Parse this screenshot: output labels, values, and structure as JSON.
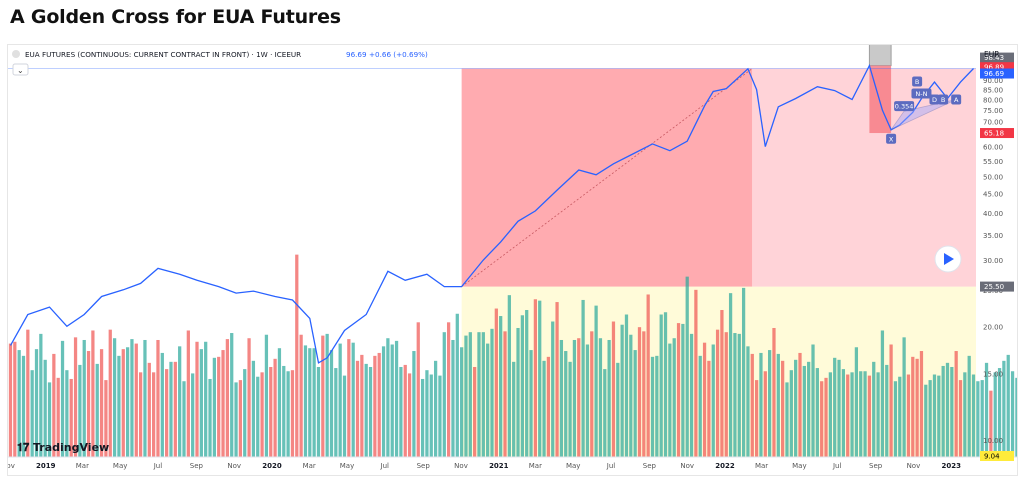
{
  "page": {
    "title": "A Golden Cross for EUA Futures"
  },
  "header": {
    "symbol_title": "EUA FUTURES (CONTINUOUS: CURRENT CONTRACT IN FRONT) · 1W · ICEEUR",
    "last": "96.69",
    "change": "+0.66 (+0.69%)",
    "currency": "EUR",
    "logo_text": "TradingView"
  },
  "colors": {
    "price_line": "#2962ff",
    "vol_up": "#26a69a",
    "vol_down": "#ef5350",
    "zone_red": "#ffabb0",
    "zone_pink": "#ffd3d8",
    "zone_yellow": "#fffbd9",
    "badge_last": "#2962ff",
    "badge_red": "#f23645",
    "badge_grey": "#6a6d78",
    "badge_vol": "#ffeb3b"
  },
  "price_badges": [
    {
      "label": "98.43",
      "kind": "grey"
    },
    {
      "label": "96.89",
      "kind": "red"
    },
    {
      "label": "96.69",
      "kind": "last"
    },
    {
      "label": "65.18",
      "kind": "red"
    },
    {
      "label": "25.50",
      "kind": "grey"
    },
    {
      "label": "9.04",
      "kind": "vol"
    }
  ],
  "pattern_labels": [
    "B",
    "N-N",
    "D",
    "B",
    "A",
    "X",
    "0.354"
  ],
  "chart_data": {
    "type": "line",
    "title": "EUA FUTURES (CONTINUOUS: CURRENT CONTRACT IN FRONT) · 1W · ICEEUR",
    "xlabel": "",
    "ylabel": "EUR",
    "ylim": [
      9,
      100
    ],
    "y_scale": "log",
    "y_ticks": [
      95,
      90,
      85,
      80,
      75,
      70,
      65,
      60,
      55,
      50,
      45,
      40,
      35,
      30,
      25,
      20,
      15,
      10
    ],
    "x_tick_labels": [
      "Nov",
      "2019",
      "Mar",
      "May",
      "Jul",
      "Sep",
      "Nov",
      "2020",
      "Mar",
      "May",
      "Jul",
      "Sep",
      "Nov",
      "2021",
      "Mar",
      "May",
      "Jul",
      "Sep",
      "Nov",
      "2022",
      "Mar",
      "May",
      "Jul",
      "Sep",
      "Nov",
      "2023"
    ],
    "x_range": [
      "2018-11-01",
      "2023-02-10"
    ],
    "series": [
      {
        "type": "line",
        "points": [
          [
            "2018-11-05",
            17.8
          ],
          [
            "2018-12-03",
            21.5
          ],
          [
            "2019-01-07",
            22.5
          ],
          [
            "2019-02-04",
            20.0
          ],
          [
            "2019-03-04",
            21.5
          ],
          [
            "2019-04-01",
            24.0
          ],
          [
            "2019-05-06",
            25.0
          ],
          [
            "2019-06-03",
            26.0
          ],
          [
            "2019-07-01",
            28.5
          ],
          [
            "2019-08-05",
            27.5
          ],
          [
            "2019-09-02",
            26.5
          ],
          [
            "2019-10-07",
            25.5
          ],
          [
            "2019-11-04",
            24.5
          ],
          [
            "2019-12-02",
            24.8
          ],
          [
            "2020-01-06",
            24.0
          ],
          [
            "2020-02-03",
            23.5
          ],
          [
            "2020-03-02",
            21.0
          ],
          [
            "2020-03-16",
            16.0
          ],
          [
            "2020-03-30",
            16.5
          ],
          [
            "2020-04-27",
            19.5
          ],
          [
            "2020-06-01",
            21.5
          ],
          [
            "2020-07-06",
            28.0
          ],
          [
            "2020-08-03",
            26.5
          ],
          [
            "2020-09-07",
            27.5
          ],
          [
            "2020-10-05",
            25.5
          ],
          [
            "2020-11-02",
            25.5
          ],
          [
            "2020-12-07",
            30.0
          ],
          [
            "2021-01-04",
            33.5
          ],
          [
            "2021-02-01",
            38.0
          ],
          [
            "2021-03-01",
            40.5
          ],
          [
            "2021-04-05",
            46.0
          ],
          [
            "2021-05-10",
            52.0
          ],
          [
            "2021-06-07",
            50.5
          ],
          [
            "2021-07-05",
            54.0
          ],
          [
            "2021-08-02",
            57.0
          ],
          [
            "2021-09-06",
            61.0
          ],
          [
            "2021-10-04",
            58.5
          ],
          [
            "2021-11-01",
            62.0
          ],
          [
            "2021-11-29",
            77.0
          ],
          [
            "2021-12-13",
            84.0
          ],
          [
            "2022-01-03",
            85.5
          ],
          [
            "2022-02-07",
            96.5
          ],
          [
            "2022-02-21",
            85.0
          ],
          [
            "2022-03-07",
            60.0
          ],
          [
            "2022-03-28",
            76.5
          ],
          [
            "2022-04-25",
            80.5
          ],
          [
            "2022-05-30",
            86.5
          ],
          [
            "2022-06-27",
            84.5
          ],
          [
            "2022-07-25",
            80.0
          ],
          [
            "2022-08-22",
            98.4
          ],
          [
            "2022-09-12",
            75.0
          ],
          [
            "2022-09-26",
            66.5
          ],
          [
            "2022-10-10",
            68.5
          ],
          [
            "2022-10-31",
            74.0
          ],
          [
            "2022-11-14",
            80.5
          ],
          [
            "2022-12-05",
            89.0
          ],
          [
            "2022-12-26",
            80.5
          ],
          [
            "2023-01-16",
            89.0
          ],
          [
            "2023-02-06",
            96.69
          ]
        ]
      },
      {
        "type": "volume",
        "name": "Volume",
        "start": "2018-11-05",
        "interval": "1W",
        "values": [
          18.0,
          18.2,
          17.3,
          16.7,
          19.6,
          15.3,
          17.4,
          19.1,
          16.3,
          14.2,
          16.9,
          14.6,
          18.3,
          15.3,
          14.5,
          18.7,
          15.8,
          18.4,
          17.2,
          19.5,
          15.9,
          17.4,
          14.4,
          19.6,
          18.6,
          16.7,
          17.4,
          17.6,
          18.5,
          18.0,
          15.1,
          18.4,
          16.0,
          15.1,
          18.4,
          17.0,
          15.4,
          16.1,
          16.1,
          17.7,
          14.3,
          19.5,
          15.0,
          18.2,
          17.4,
          18.2,
          14.5,
          16.5,
          16.6,
          17.3,
          18.5,
          19.2,
          14.2,
          14.4,
          15.4,
          18.6,
          16.2,
          14.7,
          15.1,
          19.0,
          15.6,
          16.4,
          17.5,
          15.7,
          15.2,
          15.3,
          31.0,
          19.0,
          17.8,
          17.5,
          17.5,
          15.6,
          18.9,
          19.1,
          17.3,
          15.5,
          18.0,
          14.8,
          18.5,
          18.1,
          16.2,
          16.8,
          15.9,
          15.6,
          16.7,
          17.0,
          17.7,
          18.6,
          17.9,
          18.3,
          15.6,
          15.8,
          15.0,
          17.2,
          20.5,
          14.5,
          15.3,
          14.9,
          16.2,
          14.8,
          19.3,
          20.5,
          18.4,
          21.6,
          17.6,
          18.9,
          19.3,
          15.6,
          19.3,
          19.3,
          18.0,
          19.7,
          22.3,
          21.3,
          19.4,
          24.2,
          16.1,
          19.8,
          21.4,
          22.1,
          17.3,
          23.6,
          23.4,
          16.2,
          16.6,
          20.6,
          23.2,
          18.4,
          17.2,
          16.1,
          18.4,
          18.6,
          23.5,
          17.9,
          19.4,
          22.7,
          18.6,
          15.4,
          18.4,
          20.6,
          16.0,
          20.2,
          21.5,
          19.0,
          17.3,
          19.9,
          19.4,
          24.3,
          16.6,
          16.7,
          21.5,
          21.8,
          18.0,
          18.6,
          20.4,
          20.3,
          27.1,
          19.1,
          25.0,
          16.7,
          18.1,
          16.2,
          17.9,
          19.6,
          22.1,
          19.3,
          24.5,
          19.2,
          19.1,
          25.3,
          17.7,
          16.9,
          14.4,
          17.0,
          15.2,
          17.3,
          19.8,
          16.9,
          16.2,
          14.2,
          15.3,
          16.3,
          17.0,
          15.7,
          16.1,
          17.9,
          15.5,
          14.3,
          14.6,
          15.1,
          16.5,
          16.3,
          15.4,
          14.9,
          15.1,
          17.6,
          15.2,
          15.2,
          14.8,
          16.1,
          15.1,
          19.5,
          15.8,
          17.9,
          14.3,
          14.7,
          18.7,
          14.9,
          16.6,
          16.4,
          17.2,
          14.0,
          14.4,
          14.9,
          14.8,
          15.7,
          16.0,
          15.6,
          17.2,
          14.4,
          15.1,
          16.7,
          14.9,
          14.3,
          14.4,
          16.0,
          13.5,
          15.1,
          15.5,
          16.2,
          16.8,
          15.2,
          14.6
        ],
        "up": [
          false,
          false,
          true,
          true,
          false,
          true,
          true,
          true,
          true,
          true,
          false,
          false,
          true,
          true,
          false,
          false,
          true,
          true,
          false,
          false,
          true,
          false,
          false,
          false,
          true,
          true,
          false,
          true,
          true,
          false,
          false,
          true,
          false,
          false,
          false,
          true,
          false,
          true,
          false,
          true,
          true,
          false,
          true,
          false,
          true,
          true,
          true,
          true,
          false,
          false,
          false,
          true,
          true,
          false,
          true,
          false,
          true,
          true,
          false,
          true,
          false,
          false,
          true,
          true,
          true,
          false,
          false,
          false,
          true,
          true,
          true,
          true,
          false,
          true,
          true,
          true,
          true,
          true,
          false,
          true,
          false,
          false,
          true,
          true,
          false,
          false,
          true,
          true,
          true,
          true,
          true,
          false,
          false,
          true,
          false,
          true,
          true,
          true,
          true,
          true,
          true,
          false,
          true,
          true,
          true,
          true,
          true,
          false,
          true,
          true,
          true,
          true,
          false,
          true,
          false,
          true,
          true,
          true,
          true,
          true,
          true,
          false,
          true,
          true,
          false,
          true,
          false,
          true,
          true,
          true,
          true,
          false,
          true,
          true,
          false,
          true,
          true,
          true,
          true,
          false,
          true,
          true,
          true,
          true,
          true,
          false,
          false,
          false,
          true,
          true,
          true,
          true,
          true,
          true,
          false,
          true,
          true,
          true,
          false,
          true,
          false,
          false,
          true,
          false,
          false,
          false,
          true,
          true,
          true,
          true,
          true,
          false,
          false,
          true,
          false,
          true,
          false,
          true,
          false,
          true,
          true,
          true,
          false,
          true,
          true,
          true,
          true,
          false,
          false,
          true,
          true,
          true,
          true,
          false,
          true,
          true,
          true,
          true,
          false,
          true,
          true,
          true,
          true,
          false,
          true,
          true,
          true,
          false,
          false,
          false,
          false,
          true,
          true,
          true,
          true,
          true,
          true,
          true,
          false,
          false,
          true,
          true,
          true,
          true,
          true,
          true,
          false,
          true,
          true,
          true,
          true,
          true,
          true
        ]
      }
    ],
    "annotations": {
      "golden_cross_zone": {
        "from": "2020-11-02",
        "to": "2022-02-14",
        "low": 25.5,
        "high": 96.69
      },
      "projection_zone": {
        "from": "2022-02-14",
        "to": "2023-02-10",
        "low": 25.5,
        "high": 96.69
      },
      "volume_zone": {
        "from": "2020-11-02",
        "to": "2023-02-10"
      },
      "pullback_zone": {
        "from": "2022-08-22",
        "to": "2022-09-26",
        "low": 65.18,
        "high": 98.43
      },
      "pattern_points": [
        {
          "label": "X",
          "date": "2022-09-26",
          "value": 66.5
        },
        {
          "label": "0.354",
          "date": "2022-10-17",
          "value": 74.5
        },
        {
          "label": "B",
          "date": "2022-11-07",
          "value": 84.0
        },
        {
          "label": "N-N",
          "date": "2022-11-14",
          "value": 81.5
        },
        {
          "label": "D",
          "date": "2022-12-05",
          "value": 80.0
        },
        {
          "label": "B",
          "date": "2022-12-19",
          "value": 80.0
        },
        {
          "label": "A",
          "date": "2023-01-09",
          "value": 80.0
        }
      ]
    }
  }
}
